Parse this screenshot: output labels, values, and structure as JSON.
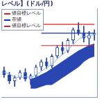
{
  "chart_data": {
    "type": "candlestick",
    "title": "レベル】(ドル/円)",
    "categories": [
      null,
      null,
      null,
      null,
      null,
      null,
      null,
      null,
      null,
      null,
      null,
      null,
      null,
      null,
      null,
      null,
      null,
      null
    ],
    "open": [
      30,
      25,
      18,
      22,
      28,
      20,
      24,
      34,
      40,
      35,
      46,
      56,
      52,
      64,
      76,
      72,
      66,
      70
    ],
    "high": [
      34,
      28,
      24,
      30,
      32,
      26,
      36,
      42,
      44,
      48,
      58,
      62,
      66,
      78,
      84,
      80,
      74,
      76
    ],
    "low": [
      22,
      15,
      12,
      20,
      18,
      14,
      22,
      30,
      32,
      33,
      44,
      48,
      50,
      60,
      70,
      62,
      58,
      64
    ],
    "close": [
      25,
      18,
      22,
      28,
      20,
      24,
      34,
      40,
      35,
      46,
      56,
      52,
      64,
      76,
      72,
      66,
      70,
      72
    ],
    "color": "#1f3fa8",
    "series": [
      {
        "type": "area",
        "color": "#2a46b0",
        "values": [
          null,
          null,
          null,
          null,
          null,
          20,
          22,
          25,
          28,
          32,
          36,
          40,
          44,
          48,
          52,
          55,
          58,
          60
        ],
        "lower": [
          null,
          null,
          null,
          null,
          null,
          10,
          10,
          12,
          14,
          14,
          18,
          22,
          26,
          30,
          34,
          40,
          44,
          46
        ]
      },
      {
        "type": "line",
        "color": "#7fb2e5",
        "values": [
          28,
          26,
          23,
          22,
          23,
          22,
          25,
          29,
          33,
          37,
          43,
          48,
          53,
          59,
          65,
          68,
          69,
          70
        ]
      },
      {
        "name": "値目標レベル",
        "type": "line",
        "color": "#e02020",
        "values": [
          null,
          null,
          null,
          null,
          null,
          null,
          null,
          82,
          82,
          82,
          82,
          82,
          82,
          82,
          82,
          82,
          82,
          82
        ]
      },
      {
        "name": "在値",
        "type": "line",
        "color": "#1030c0",
        "values": [
          null,
          null,
          null,
          null,
          null,
          null,
          null,
          72,
          72,
          72,
          72,
          72,
          72,
          72,
          72,
          72,
          72,
          72
        ]
      },
      {
        "name": "値目標レベル",
        "type": "line",
        "color": "#e02020",
        "values": [
          null,
          null,
          null,
          null,
          null,
          null,
          null,
          58,
          58,
          58,
          58,
          58,
          58,
          58,
          58,
          58,
          58,
          58
        ]
      }
    ],
    "ylim": [
      0,
      100
    ],
    "grid": false,
    "tick_labels": false,
    "legend": "upper left"
  }
}
